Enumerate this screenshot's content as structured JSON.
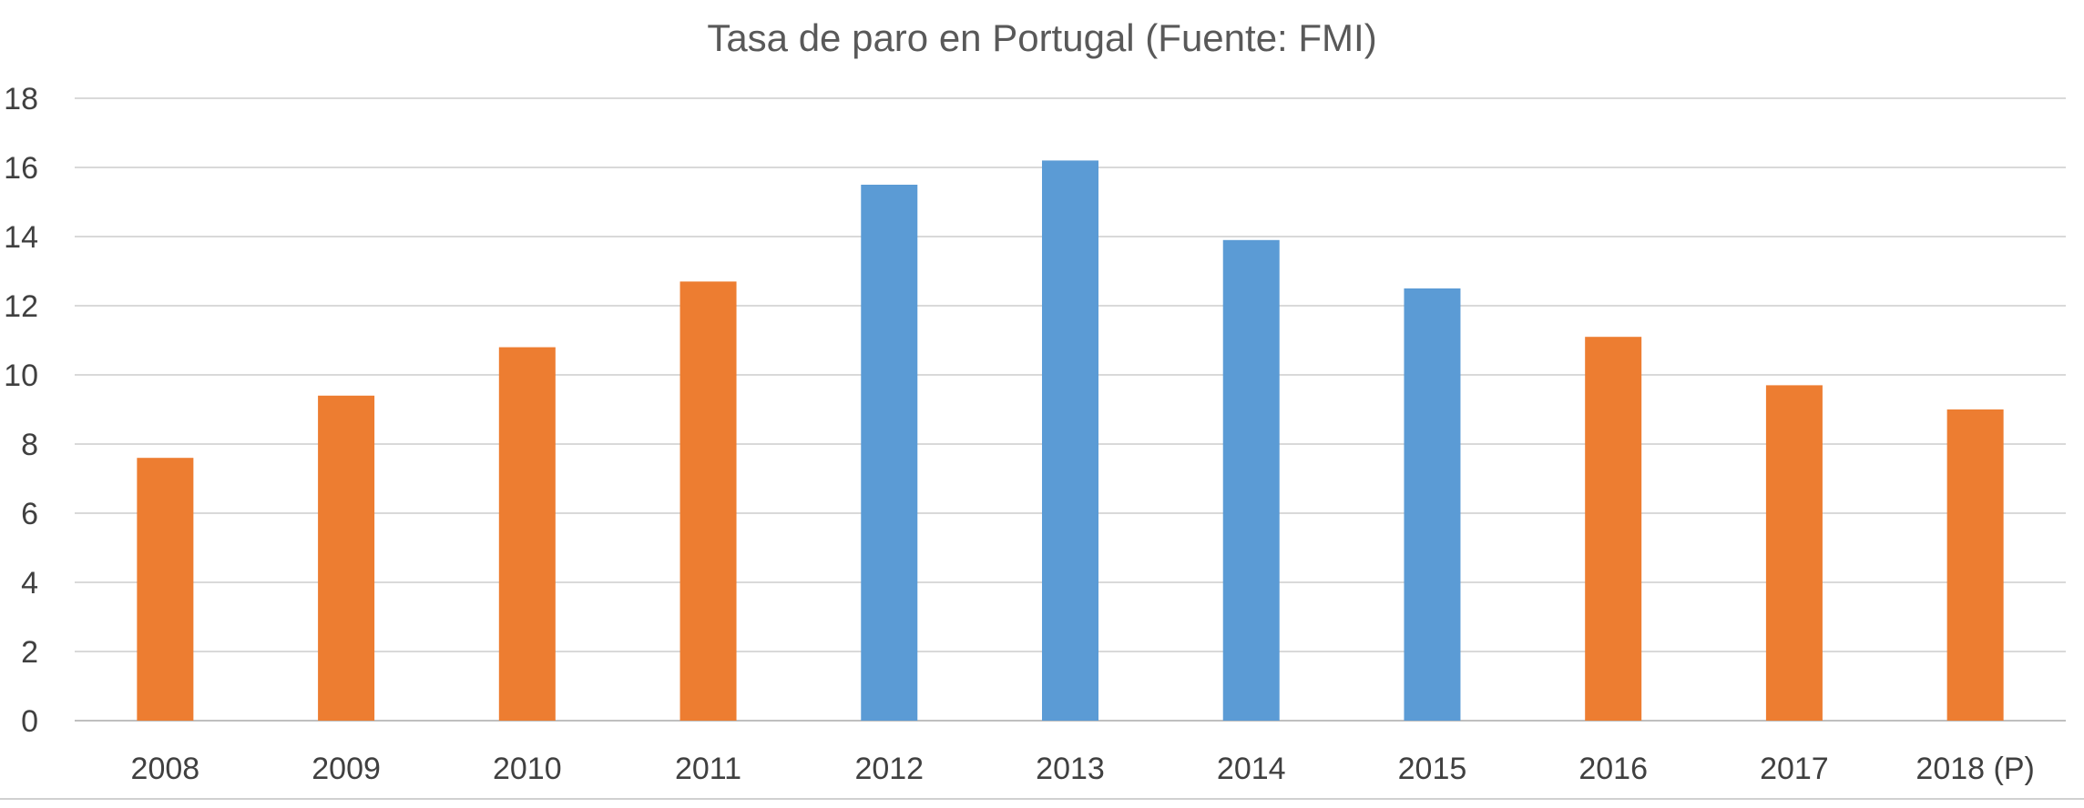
{
  "chart_data": {
    "type": "bar",
    "title": "Tasa de paro en Portugal (Fuente: FMI)",
    "xlabel": "",
    "ylabel": "",
    "ylim": [
      0,
      18
    ],
    "yticks": [
      "0",
      "2",
      "4",
      "6",
      "8",
      "10",
      "12",
      "14",
      "16",
      "18"
    ],
    "grid": true,
    "legend": "none",
    "categories": [
      "2008",
      "2009",
      "2010",
      "2011",
      "2012",
      "2013",
      "2014",
      "2015",
      "2016",
      "2017",
      "2018 (P)"
    ],
    "values": [
      7.6,
      9.4,
      10.8,
      12.7,
      15.5,
      16.2,
      13.9,
      12.5,
      11.1,
      9.7,
      9.0
    ],
    "bar_colors": [
      "#ed7d31",
      "#ed7d31",
      "#ed7d31",
      "#ed7d31",
      "#5b9bd5",
      "#5b9bd5",
      "#5b9bd5",
      "#5b9bd5",
      "#ed7d31",
      "#ed7d31",
      "#ed7d31"
    ]
  }
}
